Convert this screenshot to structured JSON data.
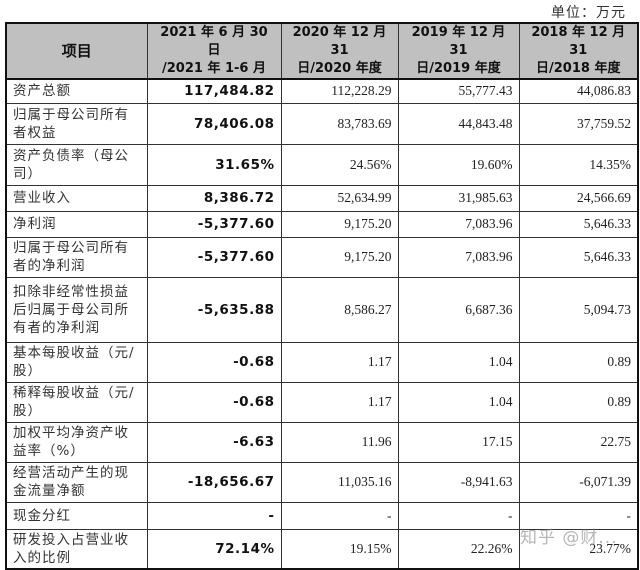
{
  "unit_label": "单位：万元",
  "table": {
    "headers": [
      "项目",
      "2021 年 6 月 30 日\n/2021 年 1-6 月",
      "2020 年 12 月 31\n日/2020 年度",
      "2019 年 12 月 31\n日/2019 年度",
      "2018 年 12 月 31\n日/2018 年度"
    ],
    "rows": [
      {
        "label": "资产总额",
        "values": [
          "117,484.82",
          "112,228.29",
          "55,777.43",
          "44,086.83"
        ]
      },
      {
        "label": "归属于母公司所有者权益",
        "values": [
          "78,406.08",
          "83,783.69",
          "44,843.48",
          "37,759.52"
        ]
      },
      {
        "label": "资产负债率（母公司）",
        "values": [
          "31.65%",
          "24.56%",
          "19.60%",
          "14.35%"
        ]
      },
      {
        "label": "营业收入",
        "values": [
          "8,386.72",
          "52,634.99",
          "31,985.63",
          "24,566.69"
        ]
      },
      {
        "label": "净利润",
        "values": [
          "-5,377.60",
          "9,175.20",
          "7,083.96",
          "5,646.33"
        ]
      },
      {
        "label": "归属于母公司所有者的净利润",
        "values": [
          "-5,377.60",
          "9,175.20",
          "7,083.96",
          "5,646.33"
        ]
      },
      {
        "label": "扣除非经常性损益后归属于母公司所有者的净利润",
        "values": [
          "-5,635.88",
          "8,586.27",
          "6,687.36",
          "5,094.73"
        ]
      },
      {
        "label": "基本每股收益（元/股）",
        "values": [
          "-0.68",
          "1.17",
          "1.04",
          "0.89"
        ]
      },
      {
        "label": "稀释每股收益（元/股）",
        "values": [
          "-0.68",
          "1.17",
          "1.04",
          "0.89"
        ]
      },
      {
        "label": "加权平均净资产收益率（%）",
        "values": [
          "-6.63",
          "11.96",
          "17.15",
          "22.75"
        ]
      },
      {
        "label": "经营活动产生的现金流量净额",
        "values": [
          "-18,656.67",
          "11,035.16",
          "-8,941.63",
          "-6,071.39"
        ]
      },
      {
        "label": "现金分红",
        "values": [
          "-",
          "-",
          "-",
          "-"
        ]
      },
      {
        "label": "研发投入占营业收入的比例",
        "values": [
          "72.14%",
          "19.15%",
          "22.26%",
          "23.77%"
        ]
      }
    ]
  },
  "watermark": "知乎 @财..."
}
